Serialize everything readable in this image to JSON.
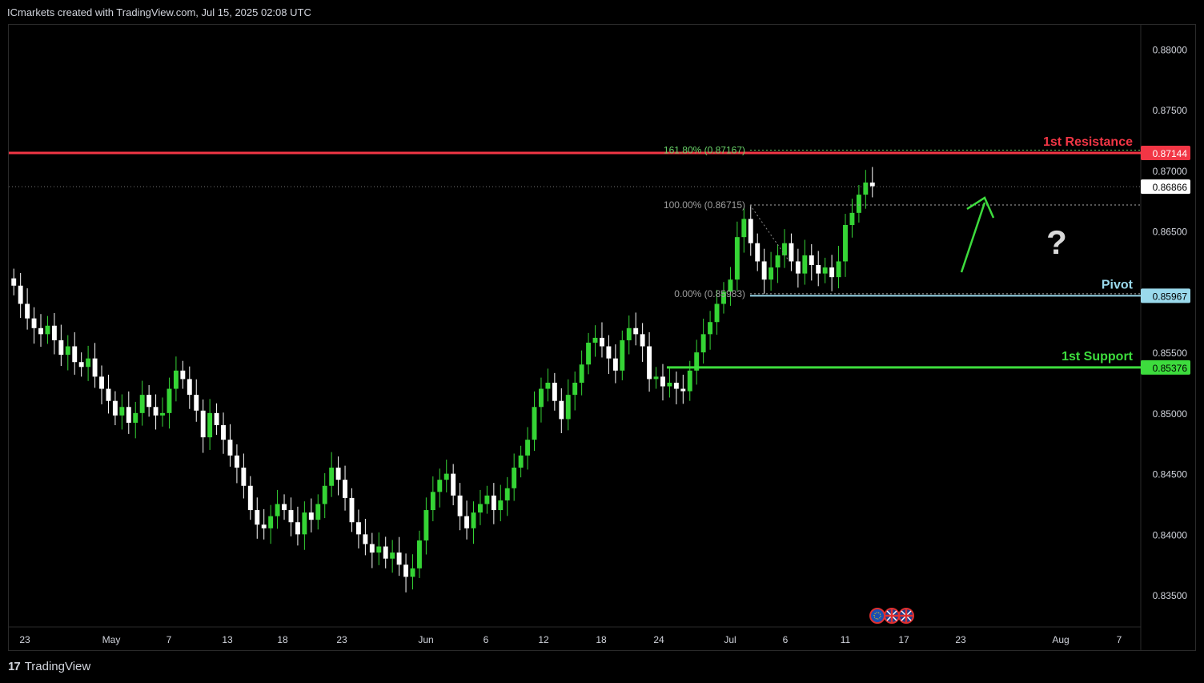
{
  "header": {
    "title": "ICmarkets created with TradingView.com, Jul 15, 2025 02:08 UTC"
  },
  "footer": {
    "logo_glyph": "17",
    "brand": "TradingView"
  },
  "colors": {
    "background": "#000000",
    "resistance": "#f23645",
    "support": "#3ddc3d",
    "pivot": "#9ad9ec",
    "up_candle": "#35d435",
    "down_candle": "#ffffff",
    "fib": "#4caf50",
    "arrow": "#3ddc3d"
  },
  "chart_data": {
    "type": "candlestick",
    "symbol_currency_flags": [
      "eu-flag-icon",
      "uk-flag-icon",
      "uk-flag-icon"
    ],
    "ylim": [
      0.8325,
      0.882
    ],
    "y_ticks": [
      "0.88000",
      "0.87500",
      "0.87000",
      "0.86500",
      "0.86000",
      "0.85500",
      "0.85000",
      "0.84500",
      "0.84000",
      "0.83500"
    ],
    "x_ticks": [
      "23",
      "May",
      "7",
      "13",
      "18",
      "23",
      "Jun",
      "6",
      "12",
      "18",
      "24",
      "Jul",
      "6",
      "11",
      "17",
      "23",
      "Aug",
      "7"
    ],
    "current_price": {
      "value": 0.86866,
      "label": "0.86866"
    },
    "levels": [
      {
        "name": "resistance",
        "label": "1st Resistance",
        "price": 0.87144,
        "price_label": "0.87144"
      },
      {
        "name": "pivot",
        "label": "Pivot",
        "price": 0.85967,
        "price_label": "0.85967"
      },
      {
        "name": "support",
        "label": "1st Support",
        "price": 0.85376,
        "price_label": "0.85376"
      }
    ],
    "fibonacci": [
      {
        "label": "161.80% (0.87167)",
        "price": 0.87167
      },
      {
        "label": "100.00% (0.86715)",
        "price": 0.86715
      },
      {
        "label": "0.00% (0.85983)",
        "price": 0.85983
      }
    ],
    "annotation": "?",
    "price_path": [
      0.8605,
      0.859,
      0.8578,
      0.857,
      0.8565,
      0.8572,
      0.856,
      0.8548,
      0.8555,
      0.8542,
      0.8538,
      0.8545,
      0.853,
      0.852,
      0.851,
      0.8498,
      0.8505,
      0.8492,
      0.85,
      0.8515,
      0.8505,
      0.8498,
      0.85,
      0.852,
      0.8535,
      0.8528,
      0.8515,
      0.8502,
      0.848,
      0.85,
      0.849,
      0.8478,
      0.8465,
      0.8455,
      0.844,
      0.842,
      0.8408,
      0.8405,
      0.8415,
      0.8425,
      0.842,
      0.841,
      0.84,
      0.8418,
      0.8412,
      0.8425,
      0.844,
      0.8455,
      0.8445,
      0.843,
      0.841,
      0.84,
      0.8392,
      0.8385,
      0.839,
      0.838,
      0.8385,
      0.8375,
      0.8365,
      0.8372,
      0.8395,
      0.842,
      0.8435,
      0.8445,
      0.845,
      0.8432,
      0.8415,
      0.8405,
      0.8418,
      0.8425,
      0.8432,
      0.842,
      0.8428,
      0.8438,
      0.8455,
      0.8465,
      0.8478,
      0.8505,
      0.852,
      0.8525,
      0.851,
      0.8495,
      0.8515,
      0.8525,
      0.854,
      0.8558,
      0.8562,
      0.8555,
      0.8545,
      0.8535,
      0.856,
      0.857,
      0.8565,
      0.8555,
      0.8528,
      0.853,
      0.8522,
      0.8525,
      0.852,
      0.8518,
      0.8535,
      0.855,
      0.8565,
      0.8575,
      0.859,
      0.86,
      0.861,
      0.8645,
      0.866,
      0.864,
      0.8625,
      0.861,
      0.862,
      0.863,
      0.864,
      0.8625,
      0.8615,
      0.863,
      0.8622,
      0.8615,
      0.862,
      0.8612,
      0.8625,
      0.8655,
      0.8665,
      0.868,
      0.869,
      0.8687
    ]
  }
}
